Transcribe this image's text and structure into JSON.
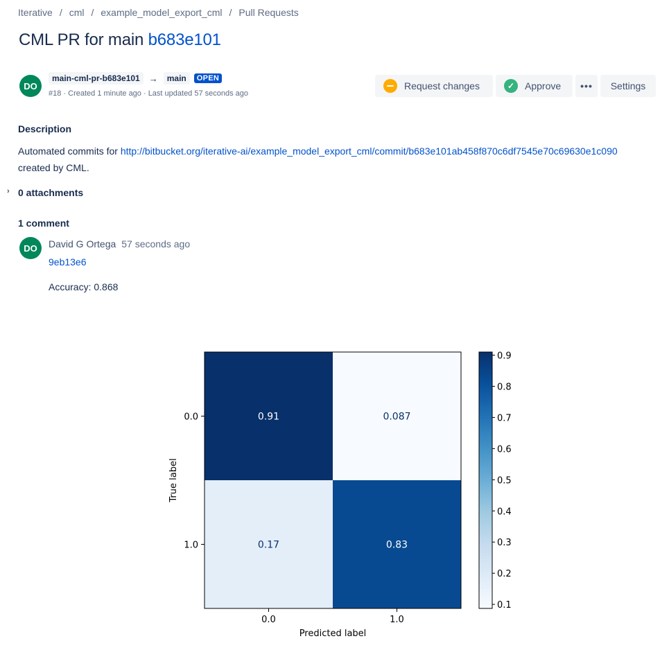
{
  "breadcrumb": [
    "Iterative",
    "cml",
    "example_model_export_cml",
    "Pull Requests"
  ],
  "title": {
    "prefix": "CML PR for main",
    "hash": "b683e101"
  },
  "pr": {
    "avatar_initials": "DO",
    "source_branch": "main-cml-pr-b683e101",
    "target_branch": "main",
    "status": "OPEN",
    "meta": "#18 · Created 1 minute ago · Last updated 57 seconds ago"
  },
  "actions": {
    "request_changes": "Request changes",
    "approve": "Approve",
    "more": "•••",
    "settings": "Settings"
  },
  "description": {
    "heading": "Description",
    "text_before": "Automated commits for ",
    "link": "http://bitbucket.org/iterative-ai/example_model_export_cml/commit/b683e101ab458f870c6df7545e70c69630e1c090",
    "text_after": "created by CML."
  },
  "attachments": {
    "label": "0 attachments"
  },
  "comments": {
    "heading": "1 comment",
    "items": [
      {
        "avatar_initials": "DO",
        "author": "David G Ortega",
        "time": "57 seconds ago",
        "commit": "9eb13e6",
        "accuracy": "Accuracy: 0.868"
      }
    ]
  },
  "colors": {
    "link": "#0052CC",
    "avatar": "#00875A",
    "open_lozenge": "#0052CC"
  },
  "chart_data": {
    "type": "heatmap",
    "x_categories": [
      "0.0",
      "1.0"
    ],
    "y_categories": [
      "0.0",
      "1.0"
    ],
    "values": [
      [
        0.91,
        0.087
      ],
      [
        0.17,
        0.83
      ]
    ],
    "value_labels": [
      [
        "0.91",
        "0.087"
      ],
      [
        "0.17",
        "0.83"
      ]
    ],
    "xlabel": "Predicted label",
    "ylabel": "True label",
    "colormap": "Blues",
    "colorbar": {
      "min": 0.087,
      "max": 0.91,
      "ticks": [
        "0.1",
        "0.2",
        "0.3",
        "0.4",
        "0.5",
        "0.6",
        "0.7",
        "0.8",
        "0.9"
      ]
    }
  }
}
